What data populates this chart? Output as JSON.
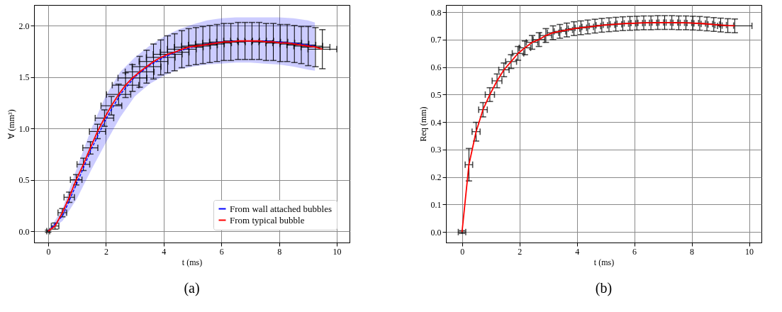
{
  "chart_data": [
    {
      "type": "line",
      "title": "(a)",
      "xlabel": "t (ms)",
      "ylabel": "∀ (mm³)",
      "xlim": [
        -0.49,
        10.44
      ],
      "ylim": [
        -0.11,
        2.2
      ],
      "xticks": [
        0,
        2,
        4,
        6,
        8,
        10
      ],
      "yticks": [
        {
          "value": 0,
          "label": "0.0"
        },
        0.5,
        {
          "value": 1,
          "label": "1.0"
        },
        1.5,
        {
          "value": 2,
          "label": "2.0"
        }
      ],
      "grid": true,
      "legend": "bottom right",
      "line_style": "solid",
      "series": [
        {
          "name": "From wall attached bubbles",
          "color": "#0000ff",
          "line_style": "dashed",
          "x": [
            0,
            0.5,
            1,
            1.5,
            2,
            2.5,
            3,
            3.5,
            4,
            4.5,
            5,
            5.5,
            6,
            6.5,
            7,
            7.5,
            8,
            8.5,
            9,
            9.24
          ],
          "values": [
            0,
            0.15,
            0.47,
            0.8,
            1.09,
            1.33,
            1.5,
            1.61,
            1.69,
            1.75,
            1.79,
            1.82,
            1.84,
            1.85,
            1.85,
            1.85,
            1.84,
            1.83,
            1.81,
            1.8
          ],
          "upper": [
            0,
            0.22,
            0.62,
            1.0,
            1.32,
            1.55,
            1.69,
            1.8,
            1.89,
            1.96,
            2.01,
            2.05,
            2.07,
            2.08,
            2.08,
            2.08,
            2.08,
            2.07,
            2.05,
            2.03
          ],
          "lower": [
            0,
            0.1,
            0.32,
            0.6,
            0.86,
            1.11,
            1.31,
            1.43,
            1.51,
            1.57,
            1.6,
            1.62,
            1.63,
            1.64,
            1.64,
            1.63,
            1.62,
            1.6,
            1.57,
            1.56
          ]
        },
        {
          "name": "From typical bubble",
          "color": "#ff0000",
          "x": [
            0,
            0.24,
            0.49,
            0.73,
            0.97,
            1.22,
            1.46,
            1.71,
            1.95,
            2.19,
            2.44,
            2.68,
            2.92,
            3.17,
            3.41,
            3.65,
            3.9,
            4.14,
            4.38,
            4.63,
            4.87,
            5.12,
            5.36,
            5.6,
            5.85,
            6.09,
            6.33,
            6.58,
            6.82,
            7.06,
            7.31,
            7.55,
            7.8,
            8.04,
            8.28,
            8.53,
            8.77,
            9.01,
            9.26,
            9.5
          ],
          "values": [
            0,
            0.05,
            0.18,
            0.33,
            0.5,
            0.65,
            0.81,
            0.97,
            1.1,
            1.22,
            1.33,
            1.42,
            1.49,
            1.55,
            1.6,
            1.65,
            1.69,
            1.72,
            1.74,
            1.77,
            1.79,
            1.8,
            1.81,
            1.82,
            1.83,
            1.84,
            1.84,
            1.85,
            1.85,
            1.85,
            1.85,
            1.84,
            1.84,
            1.83,
            1.83,
            1.82,
            1.81,
            1.8,
            1.79,
            1.77
          ],
          "errors": [
            0.01,
            0.03,
            0.04,
            0.05,
            0.05,
            0.06,
            0.06,
            0.07,
            0.08,
            0.09,
            0.1,
            0.12,
            0.13,
            0.15,
            0.16,
            0.17,
            0.17,
            0.18,
            0.18,
            0.18,
            0.18,
            0.18,
            0.18,
            0.18,
            0.18,
            0.18,
            0.18,
            0.18,
            0.18,
            0.18,
            0.18,
            0.18,
            0.18,
            0.18,
            0.18,
            0.18,
            0.18,
            0.19,
            0.19,
            0.19
          ],
          "xerrors": [
            0.05,
            0.13,
            0.15,
            0.18,
            0.2,
            0.22,
            0.26,
            0.28,
            0.32,
            0.36,
            0.42,
            0.46,
            0.5,
            0.5,
            0.5,
            0.5,
            0.5,
            0.5,
            0.5,
            0.5,
            0.5,
            0.5,
            0.5,
            0.5,
            0.5,
            0.5,
            0.5,
            0.5,
            0.5,
            0.5,
            0.5,
            0.5,
            0.5,
            0.5,
            0.5,
            0.5,
            0.5,
            0.5,
            0.5,
            0.5
          ]
        }
      ]
    },
    {
      "type": "line",
      "title": "(b)",
      "xlabel": "t (ms)",
      "ylabel": "Req (mm)",
      "xlim": [
        -0.56,
        10.43
      ],
      "ylim": [
        -0.038,
        0.826
      ],
      "xticks": [
        0,
        2,
        4,
        6,
        8,
        10
      ],
      "yticks": [
        {
          "value": 0,
          "label": "0.0"
        },
        0.1,
        0.2,
        0.3,
        0.4,
        0.5,
        0.6,
        0.7,
        0.8
      ],
      "grid": true,
      "line_style": "solid",
      "series": [
        {
          "color": "#ff0000",
          "x": [
            0,
            0.24,
            0.49,
            0.73,
            0.97,
            1.22,
            1.46,
            1.71,
            1.95,
            2.19,
            2.44,
            2.68,
            2.92,
            3.17,
            3.41,
            3.65,
            3.9,
            4.14,
            4.38,
            4.63,
            4.87,
            5.12,
            5.36,
            5.6,
            5.85,
            6.09,
            6.33,
            6.58,
            6.82,
            7.06,
            7.31,
            7.55,
            7.8,
            8.04,
            8.28,
            8.53,
            8.77,
            9.01,
            9.26,
            9.5
          ],
          "values": [
            0,
            0.245,
            0.365,
            0.445,
            0.5,
            0.55,
            0.59,
            0.62,
            0.65,
            0.67,
            0.69,
            0.7,
            0.715,
            0.725,
            0.73,
            0.735,
            0.74,
            0.743,
            0.746,
            0.749,
            0.752,
            0.754,
            0.756,
            0.758,
            0.759,
            0.76,
            0.761,
            0.761,
            0.762,
            0.762,
            0.762,
            0.761,
            0.761,
            0.76,
            0.759,
            0.757,
            0.755,
            0.753,
            0.751,
            0.75
          ],
          "errors": [
            0.005,
            0.059,
            0.034,
            0.026,
            0.025,
            0.025,
            0.025,
            0.025,
            0.025,
            0.025,
            0.025,
            0.025,
            0.025,
            0.025,
            0.025,
            0.025,
            0.025,
            0.025,
            0.025,
            0.025,
            0.025,
            0.025,
            0.025,
            0.025,
            0.025,
            0.025,
            0.025,
            0.025,
            0.025,
            0.025,
            0.025,
            0.025,
            0.025,
            0.025,
            0.025,
            0.025,
            0.025,
            0.025,
            0.025,
            0.025
          ],
          "xerrors": [
            0.13,
            0.13,
            0.14,
            0.15,
            0.16,
            0.17,
            0.18,
            0.19,
            0.2,
            0.2,
            0.2,
            0.2,
            0.2,
            0.2,
            0.2,
            0.2,
            0.2,
            0.2,
            0.2,
            0.2,
            0.2,
            0.2,
            0.2,
            0.2,
            0.2,
            0.2,
            0.2,
            0.2,
            0.2,
            0.2,
            0.2,
            0.2,
            0.2,
            0.2,
            0.2,
            0.2,
            0.2,
            0.2,
            0.2,
            0.6
          ]
        }
      ]
    }
  ]
}
